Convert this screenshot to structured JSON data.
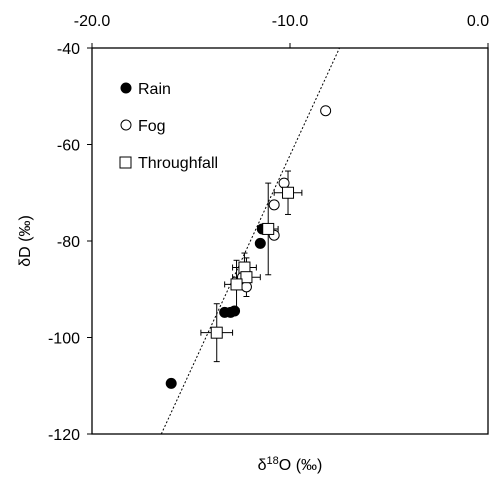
{
  "chart_data": {
    "type": "scatter",
    "xlabel_main": "δ",
    "xlabel_sup": "18",
    "xlabel_rest": "O (‰)",
    "ylabel": "δD (‰)",
    "xlim": [
      -20,
      0
    ],
    "ylim": [
      -120,
      -40
    ],
    "x_tick_labels": [
      "-20.0",
      "-10.0",
      "0.0"
    ],
    "x_ticks": [
      -20,
      -10,
      0
    ],
    "y_tick_labels": [
      "-40",
      "-60",
      "-80",
      "-100",
      "-120"
    ],
    "y_ticks": [
      -40,
      -60,
      -80,
      -100,
      -120
    ],
    "grid": false,
    "legend_position": "top-left",
    "series": [
      {
        "name": "Rain",
        "marker": "filled-circle",
        "points": [
          {
            "x": -16.0,
            "y": -109.5
          },
          {
            "x": -13.3,
            "y": -94.8
          },
          {
            "x": -13.0,
            "y": -94.8
          },
          {
            "x": -12.8,
            "y": -94.5
          },
          {
            "x": -11.5,
            "y": -80.5
          },
          {
            "x": -11.4,
            "y": -77.5
          }
        ]
      },
      {
        "name": "Fog",
        "marker": "open-circle",
        "points": [
          {
            "x": -8.2,
            "y": -53.0
          },
          {
            "x": -10.8,
            "y": -72.5
          },
          {
            "x": -10.3,
            "y": -68.0
          },
          {
            "x": -10.8,
            "y": -78.8
          },
          {
            "x": -12.2,
            "y": -89.5
          },
          {
            "x": -12.4,
            "y": -87.5
          }
        ]
      },
      {
        "name": "Throughfall",
        "marker": "open-square",
        "points": [
          {
            "x": -10.1,
            "y": -70.0,
            "xerr": 0.7,
            "yerr": 4.5
          },
          {
            "x": -11.1,
            "y": -77.5,
            "xerr": 0.5,
            "yerr": 9.5
          },
          {
            "x": -12.3,
            "y": -85.5,
            "xerr": 0.6,
            "yerr": 3.0
          },
          {
            "x": -12.2,
            "y": -87.5,
            "xerr": 0.7,
            "yerr": 4.0
          },
          {
            "x": -12.7,
            "y": -89.0,
            "xerr": 0.6,
            "yerr": 5.0
          },
          {
            "x": -13.7,
            "y": -99.0,
            "xerr": 0.8,
            "yerr": 6.0
          }
        ]
      }
    ],
    "reference_line": {
      "style": "dotted",
      "points": [
        [
          -16.5,
          -120
        ],
        [
          -7.5,
          -40
        ]
      ]
    }
  }
}
